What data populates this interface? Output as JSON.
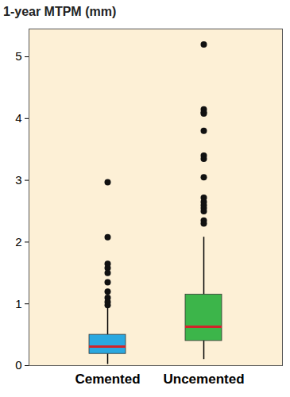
{
  "chart_data": {
    "type": "box",
    "title": "1-year MTPM (mm)",
    "categories": [
      "Cemented",
      "Uncemented"
    ],
    "colors": [
      "#2aa8e0",
      "#3cb54a"
    ],
    "boxes": [
      {
        "whisker_low": 0.02,
        "q1": 0.19,
        "median": 0.31,
        "q3": 0.5,
        "whisker_high": 0.95,
        "outliers": [
          2.97,
          2.08,
          1.65,
          1.58,
          1.5,
          1.35,
          1.2,
          1.1,
          1.03,
          0.98
        ]
      },
      {
        "whisker_low": 0.1,
        "q1": 0.4,
        "median": 0.63,
        "q3": 1.15,
        "whisker_high": 2.08,
        "outliers": [
          5.2,
          4.15,
          4.1,
          4.08,
          3.8,
          3.4,
          3.35,
          3.05,
          2.72,
          2.65,
          2.6,
          2.55,
          2.5,
          2.35,
          2.3
        ]
      }
    ],
    "ylim": [
      0,
      5.45
    ],
    "yticks": [
      0,
      1,
      2,
      3,
      4,
      5
    ]
  }
}
